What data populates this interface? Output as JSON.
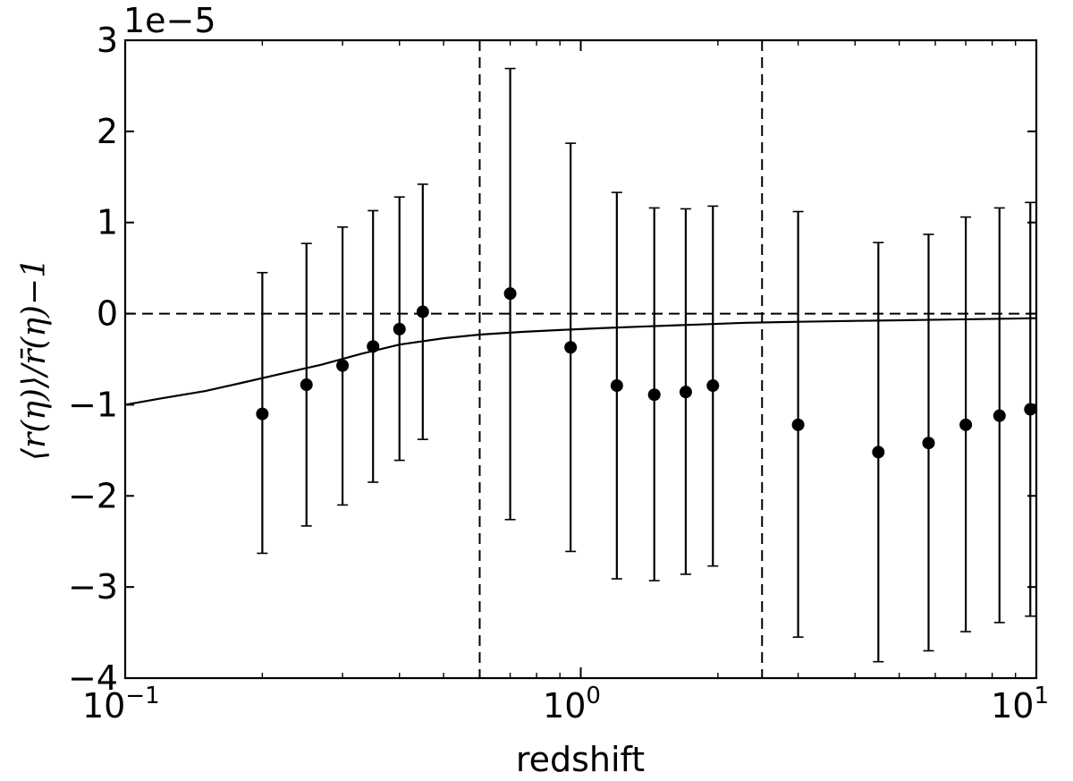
{
  "chart_data": {
    "type": "scatter",
    "title": "",
    "xlabel": "redshift",
    "ylabel": "⟨r(η)⟩/r̄(η)−1",
    "x_scale": "log",
    "xlim": [
      0.1,
      10
    ],
    "ylim": [
      -4e-05,
      3e-05
    ],
    "y_offset_label": "1e−5",
    "x_ticks": [
      {
        "value": 0.1,
        "base": "10",
        "exp": "−1"
      },
      {
        "value": 1,
        "base": "10",
        "exp": "0"
      },
      {
        "value": 10,
        "base": "10",
        "exp": "1"
      }
    ],
    "y_ticks": [
      {
        "value": -4,
        "label": "−4"
      },
      {
        "value": -3,
        "label": "−3"
      },
      {
        "value": -2,
        "label": "−2"
      },
      {
        "value": -1,
        "label": "−1"
      },
      {
        "value": 0,
        "label": "0"
      },
      {
        "value": 1,
        "label": "1"
      },
      {
        "value": 2,
        "label": "2"
      },
      {
        "value": 3,
        "label": "3"
      }
    ],
    "grid": false,
    "y_unit_scale": 1e-05,
    "points": [
      {
        "x": 0.2,
        "y": -1.1,
        "err_low": -2.63,
        "err_high": 0.45
      },
      {
        "x": 0.25,
        "y": -0.78,
        "err_low": -2.33,
        "err_high": 0.77
      },
      {
        "x": 0.3,
        "y": -0.57,
        "err_low": -2.1,
        "err_high": 0.95
      },
      {
        "x": 0.35,
        "y": -0.36,
        "err_low": -1.85,
        "err_high": 1.13
      },
      {
        "x": 0.4,
        "y": -0.17,
        "err_low": -1.61,
        "err_high": 1.28
      },
      {
        "x": 0.45,
        "y": 0.02,
        "err_low": -1.38,
        "err_high": 1.42
      },
      {
        "x": 0.7,
        "y": 0.22,
        "err_low": -2.26,
        "err_high": 2.69
      },
      {
        "x": 0.95,
        "y": -0.37,
        "err_low": -2.61,
        "err_high": 1.87
      },
      {
        "x": 1.2,
        "y": -0.79,
        "err_low": -2.91,
        "err_high": 1.33
      },
      {
        "x": 1.45,
        "y": -0.89,
        "err_low": -2.93,
        "err_high": 1.16
      },
      {
        "x": 1.7,
        "y": -0.86,
        "err_low": -2.86,
        "err_high": 1.15
      },
      {
        "x": 1.95,
        "y": -0.79,
        "err_low": -2.77,
        "err_high": 1.18
      },
      {
        "x": 3.0,
        "y": -1.22,
        "err_low": -3.55,
        "err_high": 1.12
      },
      {
        "x": 4.5,
        "y": -1.52,
        "err_low": -3.82,
        "err_high": 0.78
      },
      {
        "x": 5.8,
        "y": -1.42,
        "err_low": -3.7,
        "err_high": 0.87
      },
      {
        "x": 7.0,
        "y": -1.22,
        "err_low": -3.49,
        "err_high": 1.06
      },
      {
        "x": 8.3,
        "y": -1.12,
        "err_low": -3.39,
        "err_high": 1.16
      },
      {
        "x": 9.7,
        "y": -1.05,
        "err_low": -3.32,
        "err_high": 1.22
      }
    ],
    "model_curve": {
      "x": [
        0.1,
        0.12,
        0.15,
        0.18,
        0.22,
        0.27,
        0.33,
        0.4,
        0.5,
        0.6,
        0.75,
        0.9,
        1.1,
        1.4,
        1.8,
        2.3,
        3.0,
        4.0,
        5.5,
        7.5,
        10
      ],
      "y": [
        -1.0,
        -0.93,
        -0.85,
        -0.76,
        -0.66,
        -0.56,
        -0.44,
        -0.34,
        -0.27,
        -0.23,
        -0.2,
        -0.18,
        -0.16,
        -0.14,
        -0.12,
        -0.1,
        -0.09,
        -0.08,
        -0.07,
        -0.06,
        -0.05
      ]
    },
    "reference_lines": {
      "horizontal_y": 0,
      "vertical_x": [
        0.6,
        2.5
      ],
      "style": "dashed"
    },
    "colors": {
      "points": "#000000",
      "line": "#000000",
      "axes": "#000000"
    }
  }
}
